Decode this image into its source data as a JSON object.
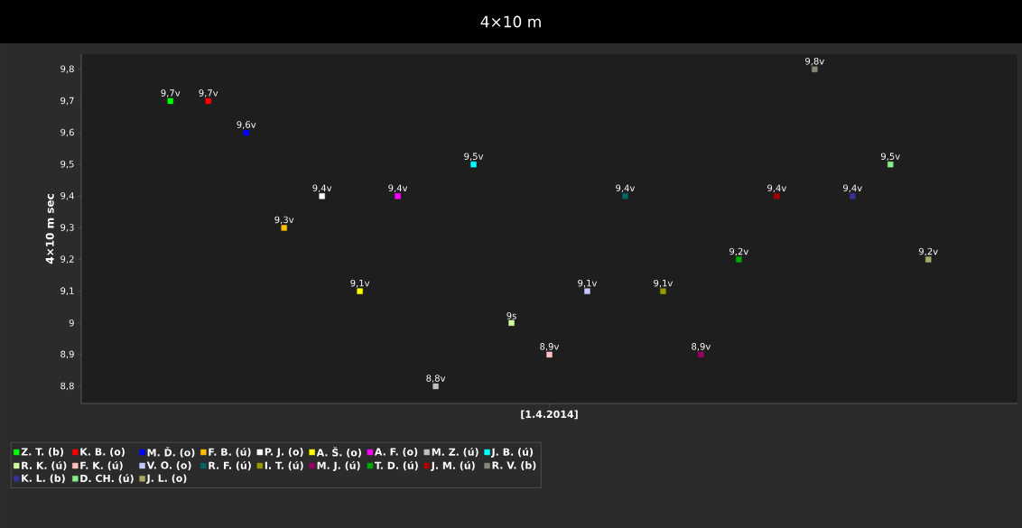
{
  "chart_data": {
    "type": "scatter",
    "title": "4×10 m",
    "ylabel": "4×10 m sec",
    "categories": [
      "[1.4.2014]"
    ],
    "ylim": [
      8.746,
      9.848
    ],
    "yticks": [
      {
        "value": 8.8,
        "label": "8,8"
      },
      {
        "value": 8.9,
        "label": "8,9"
      },
      {
        "value": 9,
        "label": "9"
      },
      {
        "value": 9.1,
        "label": "9,1"
      },
      {
        "value": 9.2,
        "label": "9,2"
      },
      {
        "value": 9.3,
        "label": "9,3"
      },
      {
        "value": 9.4,
        "label": "9,4"
      },
      {
        "value": 9.5,
        "label": "9,5"
      },
      {
        "value": 9.6,
        "label": "9,6"
      },
      {
        "value": 9.7,
        "label": "9,7"
      },
      {
        "value": 9.8,
        "label": "9,8"
      }
    ],
    "legend": "bottom",
    "marker": "square",
    "series": [
      {
        "name": "Z. T. (b)",
        "color": "#00ff00",
        "values": [
          9.7
        ],
        "value_labels": [
          "9,7v"
        ]
      },
      {
        "name": "K. B. (o)",
        "color": "#ff0000",
        "values": [
          9.7
        ],
        "value_labels": [
          "9,7v"
        ]
      },
      {
        "name": "M. Ď. (o)",
        "color": "#0000ff",
        "values": [
          9.6
        ],
        "value_labels": [
          "9,6v"
        ]
      },
      {
        "name": "F. B. (ú)",
        "color": "#ffc000",
        "values": [
          9.3
        ],
        "value_labels": [
          "9,3v"
        ]
      },
      {
        "name": "P. J. (o)",
        "color": "#ffffff",
        "values": [
          9.4
        ],
        "value_labels": [
          "9,4v"
        ]
      },
      {
        "name": "A. Š. (o)",
        "color": "#ffff00",
        "values": [
          9.1
        ],
        "value_labels": [
          "9,1v"
        ]
      },
      {
        "name": "A. F. (o)",
        "color": "#ff00ff",
        "values": [
          9.4
        ],
        "value_labels": [
          "9,4v"
        ]
      },
      {
        "name": "M. Z. (ú)",
        "color": "#c0c0c0",
        "values": [
          8.8
        ],
        "value_labels": [
          "8,8v"
        ]
      },
      {
        "name": "J. B. (ú)",
        "color": "#00ffff",
        "values": [
          9.5
        ],
        "value_labels": [
          "9,5v"
        ]
      },
      {
        "name": "R. K. (ú)",
        "color": "#ccff99",
        "values": [
          9
        ],
        "value_labels": [
          "9s"
        ]
      },
      {
        "name": "F. K. (ú)",
        "color": "#ffc0c0",
        "values": [
          8.9
        ],
        "value_labels": [
          "8,9v"
        ]
      },
      {
        "name": "V. O. (o)",
        "color": "#c8c8ff",
        "values": [
          9.1
        ],
        "value_labels": [
          "9,1v"
        ]
      },
      {
        "name": "R. F. (ú)",
        "color": "#006666",
        "values": [
          9.4
        ],
        "value_labels": [
          "9,4v"
        ]
      },
      {
        "name": "I. T. (ú)",
        "color": "#999900",
        "values": [
          9.1
        ],
        "value_labels": [
          "9,1v"
        ]
      },
      {
        "name": "M. J. (ú)",
        "color": "#990066",
        "values": [
          8.9
        ],
        "value_labels": [
          "8,9v"
        ]
      },
      {
        "name": "T. D. (ú)",
        "color": "#00aa00",
        "values": [
          9.2
        ],
        "value_labels": [
          "9,2v"
        ]
      },
      {
        "name": "J. M. (ú)",
        "color": "#aa0000",
        "values": [
          9.4
        ],
        "value_labels": [
          "9,4v"
        ]
      },
      {
        "name": "R. V. (b)",
        "color": "#888877",
        "values": [
          9.8
        ],
        "value_labels": [
          "9,8v"
        ]
      },
      {
        "name": "K. L. (b)",
        "color": "#333399",
        "values": [
          9.4
        ],
        "value_labels": [
          "9,4v"
        ]
      },
      {
        "name": "D. CH. (ú)",
        "color": "#88ee88",
        "values": [
          9.5
        ],
        "value_labels": [
          "9,5v"
        ]
      },
      {
        "name": "J. L. (o)",
        "color": "#aaaa66",
        "values": [
          9.2
        ],
        "value_labels": [
          "9,2v"
        ]
      }
    ]
  }
}
